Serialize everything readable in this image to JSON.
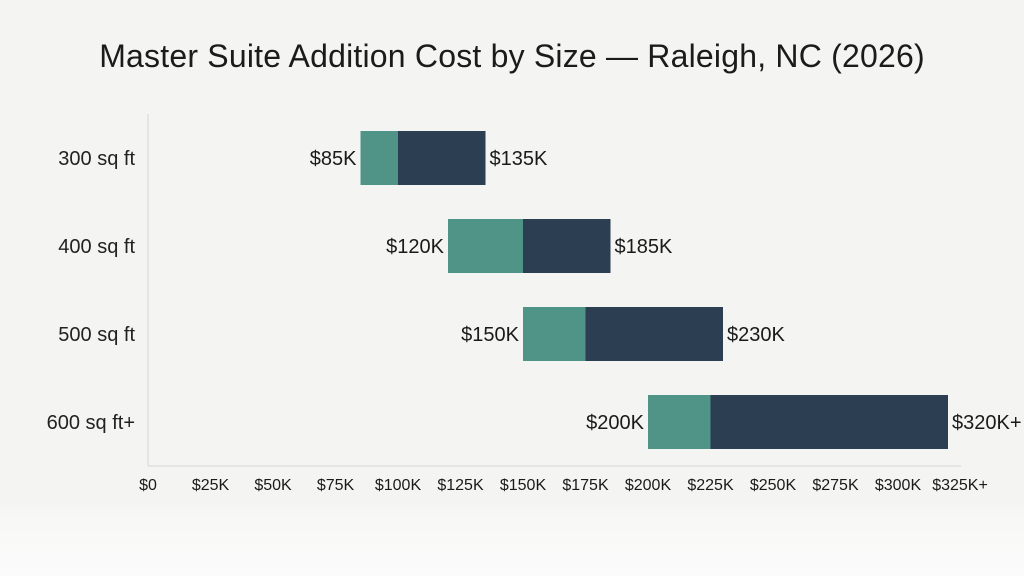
{
  "chart_data": {
    "type": "bar",
    "title": "Master Suite Addition Cost by Size — Raleigh, NC (2026)",
    "xlabel": "",
    "ylabel": "",
    "categories": [
      "300 sq ft",
      "400 sq ft",
      "500 sq ft",
      "600 sq ft+"
    ],
    "low": [
      85,
      120,
      150,
      200
    ],
    "mid": [
      100,
      150,
      175,
      225
    ],
    "high": [
      135,
      185,
      230,
      320
    ],
    "low_labels": [
      "$85K",
      "$120K",
      "$150K",
      "$200K"
    ],
    "high_labels": [
      "$135K",
      "$185K",
      "$230K",
      "$320K+"
    ],
    "x_ticks": [
      0,
      25,
      50,
      75,
      100,
      125,
      150,
      175,
      200,
      225,
      250,
      275,
      300,
      325
    ],
    "x_tick_labels": [
      "$0",
      "$25K",
      "$50K",
      "$75K",
      "$100K",
      "$125K",
      "$150K",
      "$175K",
      "$200K",
      "$225K",
      "$250K",
      "$275K",
      "$300K",
      "$325K+"
    ],
    "xlim": [
      0,
      325
    ],
    "grid": false,
    "colors": {
      "low_segment": "#4f9486",
      "high_segment": "#2c3e52",
      "axis": "#d6d6d6"
    }
  }
}
